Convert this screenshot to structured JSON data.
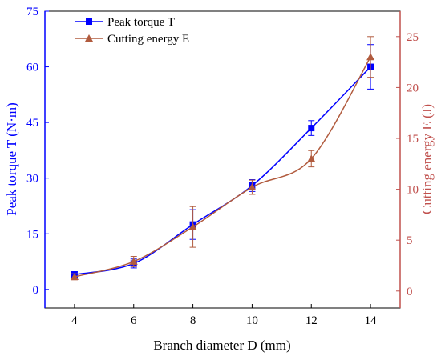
{
  "chart_data": {
    "type": "line",
    "x": [
      4,
      6,
      8,
      10,
      12,
      14
    ],
    "xlabel": "Branch diameter D (mm)",
    "xlim": [
      3,
      15
    ],
    "xticks": [
      4,
      6,
      8,
      10,
      12,
      14
    ],
    "ylabel_left": "Peak torque T (N·m)",
    "ylim_left": [
      -5,
      75
    ],
    "yticks_left": [
      0,
      15,
      30,
      45,
      60,
      75
    ],
    "ylabel_right": "Cutting energy E (J)",
    "ylim_right": [
      -1.667,
      27.5
    ],
    "yticks_right": [
      0,
      5,
      10,
      15,
      20,
      25
    ],
    "legend_position": "top-left",
    "grid": false,
    "series": [
      {
        "name": "Peak torque T",
        "axis": "left",
        "marker": "square",
        "color": "#0000ff",
        "values": [
          4,
          7,
          17.5,
          28,
          43.5,
          60
        ],
        "errors": [
          0.8,
          1.2,
          4,
          1.6,
          2,
          6
        ]
      },
      {
        "name": "Cutting energy E",
        "axis": "right",
        "marker": "triangle",
        "color": "#b15b3e",
        "values": [
          1.4,
          2.9,
          6.3,
          10.2,
          13,
          23
        ],
        "errors": [
          0.3,
          0.5,
          2.0,
          0.7,
          0.8,
          2.0
        ]
      }
    ]
  }
}
